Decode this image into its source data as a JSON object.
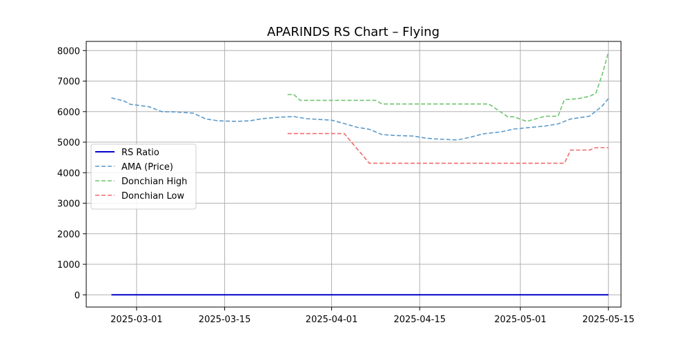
{
  "chart_data": {
    "type": "line",
    "title": "APARINDS RS Chart – Flying",
    "xlabel": "",
    "ylabel": "",
    "grid": true,
    "legend_position": "center-left",
    "x_range": [
      "2025-02-21",
      "2025-05-17"
    ],
    "ylim": [
      -400,
      8300
    ],
    "x_ticks": [
      "2025-03-01",
      "2025-03-15",
      "2025-04-01",
      "2025-04-15",
      "2025-05-01",
      "2025-05-15"
    ],
    "y_ticks": [
      0,
      1000,
      2000,
      3000,
      4000,
      5000,
      6000,
      7000,
      8000
    ],
    "series": [
      {
        "name": "RS Ratio",
        "color": "#0000cc",
        "style": "solid",
        "points": [
          [
            "2025-02-25",
            0
          ],
          [
            "2025-05-15",
            0
          ]
        ]
      },
      {
        "name": "AMA (Price)",
        "color": "#5b9ac9",
        "style": "dashed",
        "points": [
          [
            "2025-02-25",
            6450
          ],
          [
            "2025-02-27",
            6350
          ],
          [
            "2025-02-28",
            6240
          ],
          [
            "2025-03-03",
            6160
          ],
          [
            "2025-03-05",
            6000
          ],
          [
            "2025-03-07",
            5990
          ],
          [
            "2025-03-10",
            5950
          ],
          [
            "2025-03-12",
            5760
          ],
          [
            "2025-03-14",
            5700
          ],
          [
            "2025-03-17",
            5680
          ],
          [
            "2025-03-19",
            5700
          ],
          [
            "2025-03-21",
            5770
          ],
          [
            "2025-03-24",
            5820
          ],
          [
            "2025-03-26",
            5840
          ],
          [
            "2025-03-28",
            5770
          ],
          [
            "2025-04-01",
            5720
          ],
          [
            "2025-04-03",
            5610
          ],
          [
            "2025-04-05",
            5490
          ],
          [
            "2025-04-07",
            5420
          ],
          [
            "2025-04-09",
            5250
          ],
          [
            "2025-04-11",
            5220
          ],
          [
            "2025-04-14",
            5200
          ],
          [
            "2025-04-16",
            5130
          ],
          [
            "2025-04-18",
            5100
          ],
          [
            "2025-04-21",
            5070
          ],
          [
            "2025-04-23",
            5160
          ],
          [
            "2025-04-25",
            5270
          ],
          [
            "2025-04-28",
            5340
          ],
          [
            "2025-04-30",
            5430
          ],
          [
            "2025-05-02",
            5470
          ],
          [
            "2025-05-05",
            5530
          ],
          [
            "2025-05-07",
            5600
          ],
          [
            "2025-05-09",
            5760
          ],
          [
            "2025-05-12",
            5850
          ],
          [
            "2025-05-14",
            6180
          ],
          [
            "2025-05-15",
            6430
          ]
        ]
      },
      {
        "name": "Donchian High",
        "color": "#6ec46e",
        "style": "dashed",
        "points": [
          [
            "2025-03-25",
            6560
          ],
          [
            "2025-03-26",
            6560
          ],
          [
            "2025-03-27",
            6370
          ],
          [
            "2025-04-07",
            6370
          ],
          [
            "2025-04-08",
            6370
          ],
          [
            "2025-04-09",
            6250
          ],
          [
            "2025-04-25",
            6250
          ],
          [
            "2025-04-26",
            6250
          ],
          [
            "2025-04-29",
            5830
          ],
          [
            "2025-04-30",
            5830
          ],
          [
            "2025-05-02",
            5680
          ],
          [
            "2025-05-05",
            5850
          ],
          [
            "2025-05-07",
            5850
          ],
          [
            "2025-05-08",
            6390
          ],
          [
            "2025-05-10",
            6420
          ],
          [
            "2025-05-12",
            6500
          ],
          [
            "2025-05-13",
            6600
          ],
          [
            "2025-05-14",
            7200
          ],
          [
            "2025-05-15",
            7950
          ]
        ]
      },
      {
        "name": "Donchian Low",
        "color": "#f06a6a",
        "style": "dashed",
        "points": [
          [
            "2025-03-25",
            5280
          ],
          [
            "2025-04-03",
            5280
          ],
          [
            "2025-04-07",
            4310
          ],
          [
            "2025-05-08",
            4310
          ],
          [
            "2025-05-09",
            4740
          ],
          [
            "2025-05-12",
            4740
          ],
          [
            "2025-05-13",
            4820
          ],
          [
            "2025-05-15",
            4820
          ]
        ]
      }
    ]
  }
}
